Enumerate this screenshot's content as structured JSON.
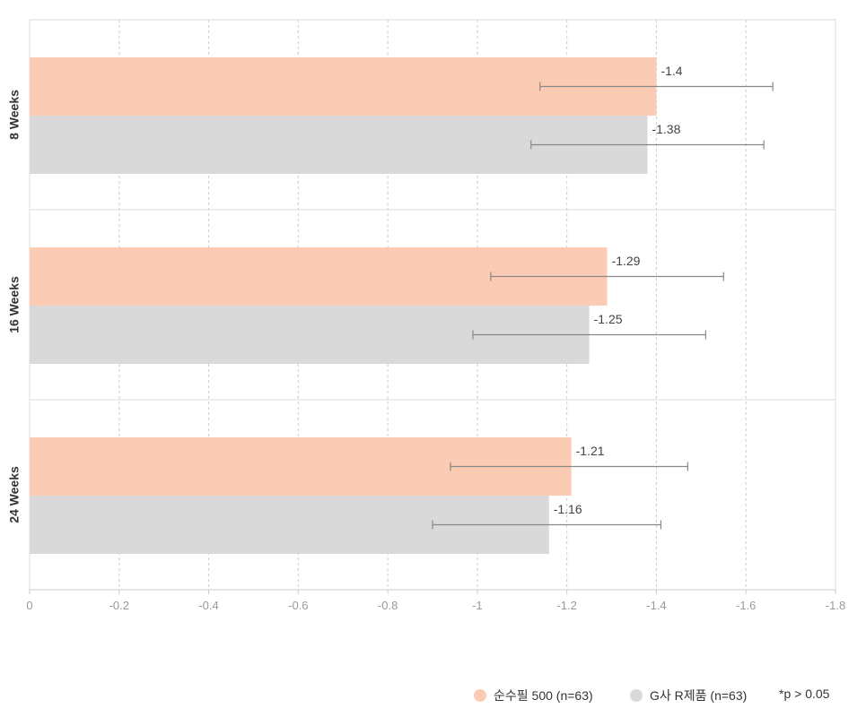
{
  "chart_data": {
    "type": "bar",
    "orientation": "horizontal",
    "categories": [
      "8 Weeks",
      "16 Weeks",
      "24 Weeks"
    ],
    "series": [
      {
        "name": "순수필 500 (n=63)",
        "color": "#fccbb3",
        "values": [
          -1.4,
          -1.29,
          -1.21
        ],
        "labels": [
          "-1.4",
          "-1.29",
          "-1.21"
        ],
        "error_low": [
          -1.14,
          -1.03,
          -0.94
        ],
        "error_high": [
          -1.66,
          -1.55,
          -1.47
        ]
      },
      {
        "name": "G사 R제품 (n=63)",
        "color": "#d9d9d9",
        "values": [
          -1.38,
          -1.25,
          -1.16
        ],
        "labels": [
          "-1.38",
          "-1.25",
          "-1.16"
        ],
        "error_low": [
          -1.12,
          -0.99,
          -0.9
        ],
        "error_high": [
          -1.64,
          -1.51,
          -1.41
        ]
      }
    ],
    "x_ticks": [
      0,
      -0.2,
      -0.4,
      -0.6,
      -0.8,
      -1,
      -1.2,
      -1.4,
      -1.6,
      -1.8
    ],
    "x_tick_labels": [
      "0",
      "-0.2",
      "-0.4",
      "-0.6",
      "-0.8",
      "-1",
      "-1.2",
      "-1.4",
      "-1.6",
      "-1.8"
    ],
    "xlim": [
      0,
      -1.8
    ],
    "grid": "vertical dashed",
    "legend_position": "bottom-right",
    "note": "*p > 0.05"
  }
}
